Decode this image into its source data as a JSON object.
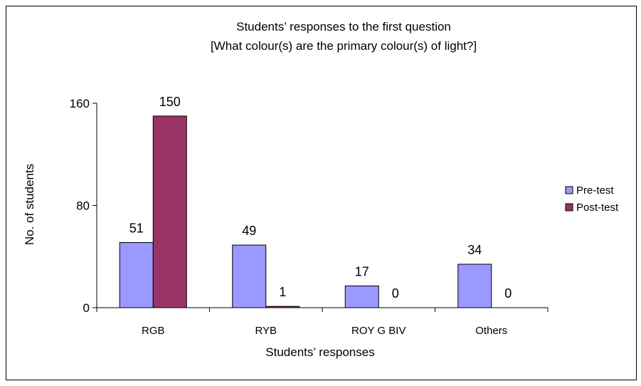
{
  "chart_data": {
    "type": "bar",
    "title": "Students’ responses to the first question",
    "subtitle": "[What colour(s) are the primary colour(s) of light?]",
    "xlabel": "Students’ responses",
    "ylabel": "No. of students",
    "categories": [
      "RGB",
      "RYB",
      "ROY G BIV",
      "Others"
    ],
    "series": [
      {
        "name": "Pre-test",
        "color": "#9999ff",
        "values": [
          51,
          49,
          17,
          34
        ]
      },
      {
        "name": "Post-test",
        "color": "#993366",
        "values": [
          150,
          1,
          0,
          0
        ]
      }
    ],
    "ylim": [
      0,
      160
    ],
    "yticks": [
      0,
      80,
      160
    ],
    "grid": false,
    "legend_position": "right"
  }
}
